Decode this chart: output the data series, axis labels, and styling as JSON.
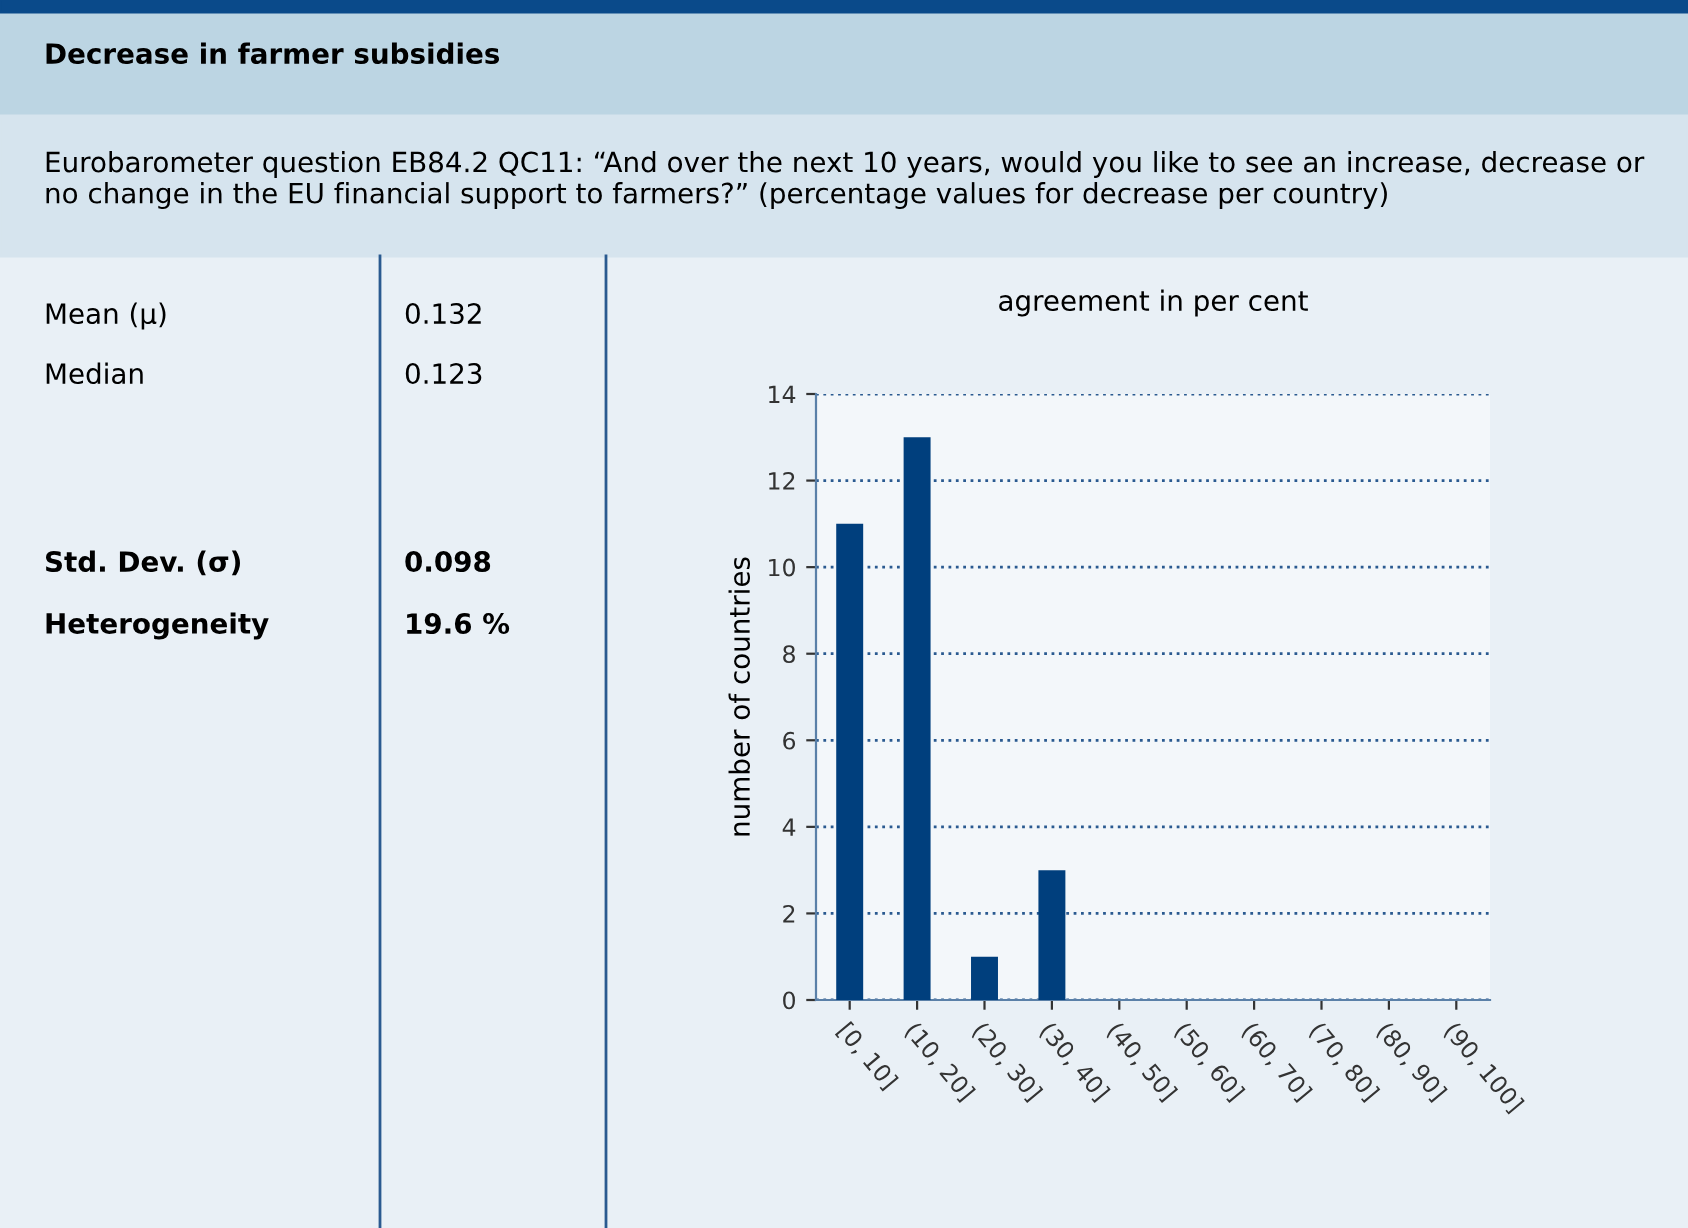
{
  "chart_data": {
    "type": "bar",
    "title": "Decrease in farmer subsidies",
    "subtitle": "Eurobarometer question EB84.2 QC11: “And over the next 10 years, would you like to see an increase, decrease or no change in the EU financial support to farmers?” (percentage values for decrease per country)",
    "xlabel": "agreement in per cent",
    "ylabel": "number of countries",
    "categories": [
      "[0, 10]",
      "(10, 20]",
      "(20, 30]",
      "(30, 40]",
      "(40, 50]",
      "(50, 60]",
      "(60, 70]",
      "(70, 80]",
      "(80, 90]",
      "(90, 100]"
    ],
    "values": [
      11,
      13,
      1,
      3,
      0,
      0,
      0,
      0,
      0,
      0
    ],
    "color": "#003f7d",
    "ylim": [
      0,
      14
    ],
    "yticks": [
      0,
      2,
      4,
      6,
      8,
      10,
      12,
      14
    ],
    "grid": "y",
    "line_style": "dotted",
    "annotations": [
      "Mean (μ)",
      "0.132",
      "Median",
      "0.123",
      "Std. Dev. (σ)",
      "0.098",
      "Heterogeneity",
      "19.6 %"
    ]
  }
}
